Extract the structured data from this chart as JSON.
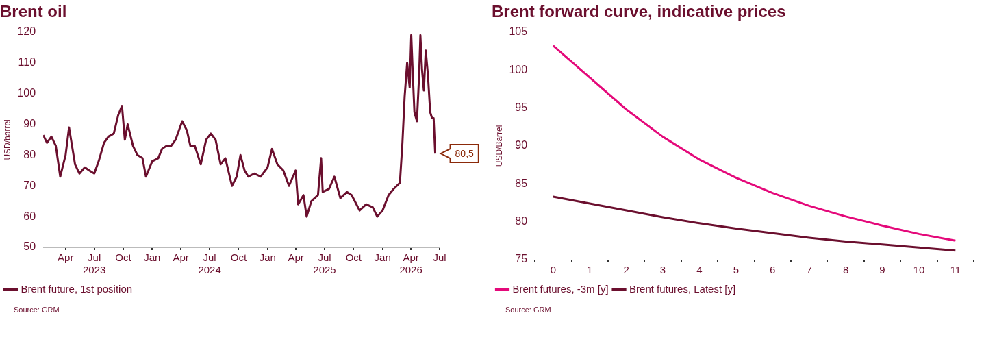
{
  "chart_data": [
    {
      "type": "line",
      "title": "Brent oil",
      "ylabel": "USD/barrel",
      "legend": "bottom left",
      "marker": "none",
      "x": [
        "2023-01-20",
        "2023-02-01",
        "2023-02-15",
        "2023-03-01",
        "2023-03-15",
        "2023-04-01",
        "2023-04-12",
        "2023-05-01",
        "2023-05-15",
        "2023-06-01",
        "2023-06-15",
        "2023-07-01",
        "2023-07-15",
        "2023-08-01",
        "2023-08-15",
        "2023-09-01",
        "2023-09-15",
        "2023-09-27",
        "2023-10-06",
        "2023-10-15",
        "2023-11-01",
        "2023-11-15",
        "2023-12-01",
        "2023-12-12",
        "2024-01-01",
        "2024-01-20",
        "2024-02-01",
        "2024-02-15",
        "2024-03-01",
        "2024-03-15",
        "2024-04-05",
        "2024-04-20",
        "2024-05-01",
        "2024-05-15",
        "2024-06-03",
        "2024-06-20",
        "2024-07-05",
        "2024-07-20",
        "2024-08-05",
        "2024-08-20",
        "2024-09-10",
        "2024-09-25",
        "2024-10-07",
        "2024-10-20",
        "2024-11-01",
        "2024-11-20",
        "2024-12-10",
        "2025-01-01",
        "2025-01-15",
        "2025-02-01",
        "2025-02-20",
        "2025-03-10",
        "2025-03-31",
        "2025-04-08",
        "2025-04-25",
        "2025-05-05",
        "2025-05-20",
        "2025-06-10",
        "2025-06-20",
        "2025-06-25",
        "2025-07-15",
        "2025-08-01",
        "2025-08-20",
        "2025-09-10",
        "2025-09-25",
        "2025-10-20",
        "2025-11-10",
        "2025-12-01",
        "2025-12-15",
        "2026-01-01",
        "2026-01-20",
        "2026-02-05",
        "2026-02-25",
        "2026-03-05",
        "2026-03-12",
        "2026-03-20",
        "2026-03-28",
        "2026-04-02",
        "2026-04-07",
        "2026-04-12",
        "2026-04-20",
        "2026-04-27",
        "2026-05-01",
        "2026-05-06",
        "2026-05-12",
        "2026-05-18",
        "2026-05-25",
        "2026-06-01",
        "2026-06-07",
        "2026-06-12",
        "2026-06-17"
      ],
      "series": [
        {
          "name": "Brent future, 1st position",
          "color": "#6b0f2e",
          "values": [
            86.5,
            84,
            86,
            83,
            73,
            80,
            89,
            77,
            74,
            76,
            75,
            74,
            78,
            84,
            86,
            87,
            93,
            96,
            85,
            90,
            83,
            80,
            79,
            73,
            78,
            79,
            82,
            83,
            83,
            85,
            91,
            88,
            83,
            83,
            77,
            85,
            87,
            85,
            77,
            79,
            70,
            73,
            80,
            75,
            73,
            74,
            73,
            76,
            82,
            77,
            75,
            70,
            75,
            64,
            67,
            60,
            65,
            67,
            79,
            68,
            69,
            73,
            66,
            68,
            67,
            62,
            64,
            63,
            60,
            62,
            67,
            69,
            71,
            84,
            99,
            110,
            102,
            119,
            106,
            94,
            91,
            106,
            119,
            108,
            101,
            114,
            106,
            94,
            92,
            92,
            80.5
          ]
        }
      ],
      "xticks": [
        {
          "value": "2023-04-01",
          "label": "Apr"
        },
        {
          "value": "2023-07-01",
          "label": "Jul 2023"
        },
        {
          "value": "2023-10-01",
          "label": "Oct"
        },
        {
          "value": "2024-01-01",
          "label": "Jan"
        },
        {
          "value": "2024-04-01",
          "label": "Apr"
        },
        {
          "value": "2024-07-01",
          "label": "Jul 2024"
        },
        {
          "value": "2024-10-01",
          "label": "Oct"
        },
        {
          "value": "2025-01-01",
          "label": "Jan"
        },
        {
          "value": "2025-04-01",
          "label": "Apr"
        },
        {
          "value": "2025-07-01",
          "label": "Jul 2025"
        },
        {
          "value": "2025-10-01",
          "label": "Oct"
        },
        {
          "value": "2026-01-01",
          "label": "Jan"
        },
        {
          "value": "2026-04-01",
          "label": "Apr 2026"
        },
        {
          "value": "2026-07-01",
          "label": "Jul"
        }
      ],
      "xlim": [
        "2023-01-20",
        "2026-07-01"
      ],
      "ylim": [
        50,
        120
      ],
      "yticks": [
        50,
        60,
        70,
        80,
        90,
        100,
        110,
        120
      ],
      "annotations": [
        {
          "text": "80,5",
          "x": "2026-06-17",
          "y": 80.5
        },
        "Source: GRM"
      ]
    },
    {
      "type": "line",
      "title": "Brent forward curve, indicative prices",
      "ylabel": "USD/Barrel",
      "legend": "bottom left",
      "marker": "none",
      "categories": [
        "0",
        "1",
        "2",
        "3",
        "4",
        "5",
        "6",
        "7",
        "8",
        "9",
        "10",
        "11"
      ],
      "series": [
        {
          "name": "Brent futures, -3m [y]",
          "color": "#e4097a",
          "values": [
            103.2,
            99.0,
            94.8,
            91.2,
            88.2,
            85.8,
            83.8,
            82.1,
            80.7,
            79.5,
            78.4,
            77.5
          ]
        },
        {
          "name": "Brent futures, Latest [y]",
          "color": "#6b0f2e",
          "values": [
            83.3,
            82.4,
            81.5,
            80.6,
            79.8,
            79.1,
            78.5,
            77.9,
            77.4,
            77.0,
            76.6,
            76.2
          ]
        }
      ],
      "ylim": [
        75,
        105
      ],
      "yticks": [
        75,
        80,
        85,
        90,
        95,
        100,
        105
      ],
      "annotations": [
        "Source: GRM"
      ]
    }
  ]
}
